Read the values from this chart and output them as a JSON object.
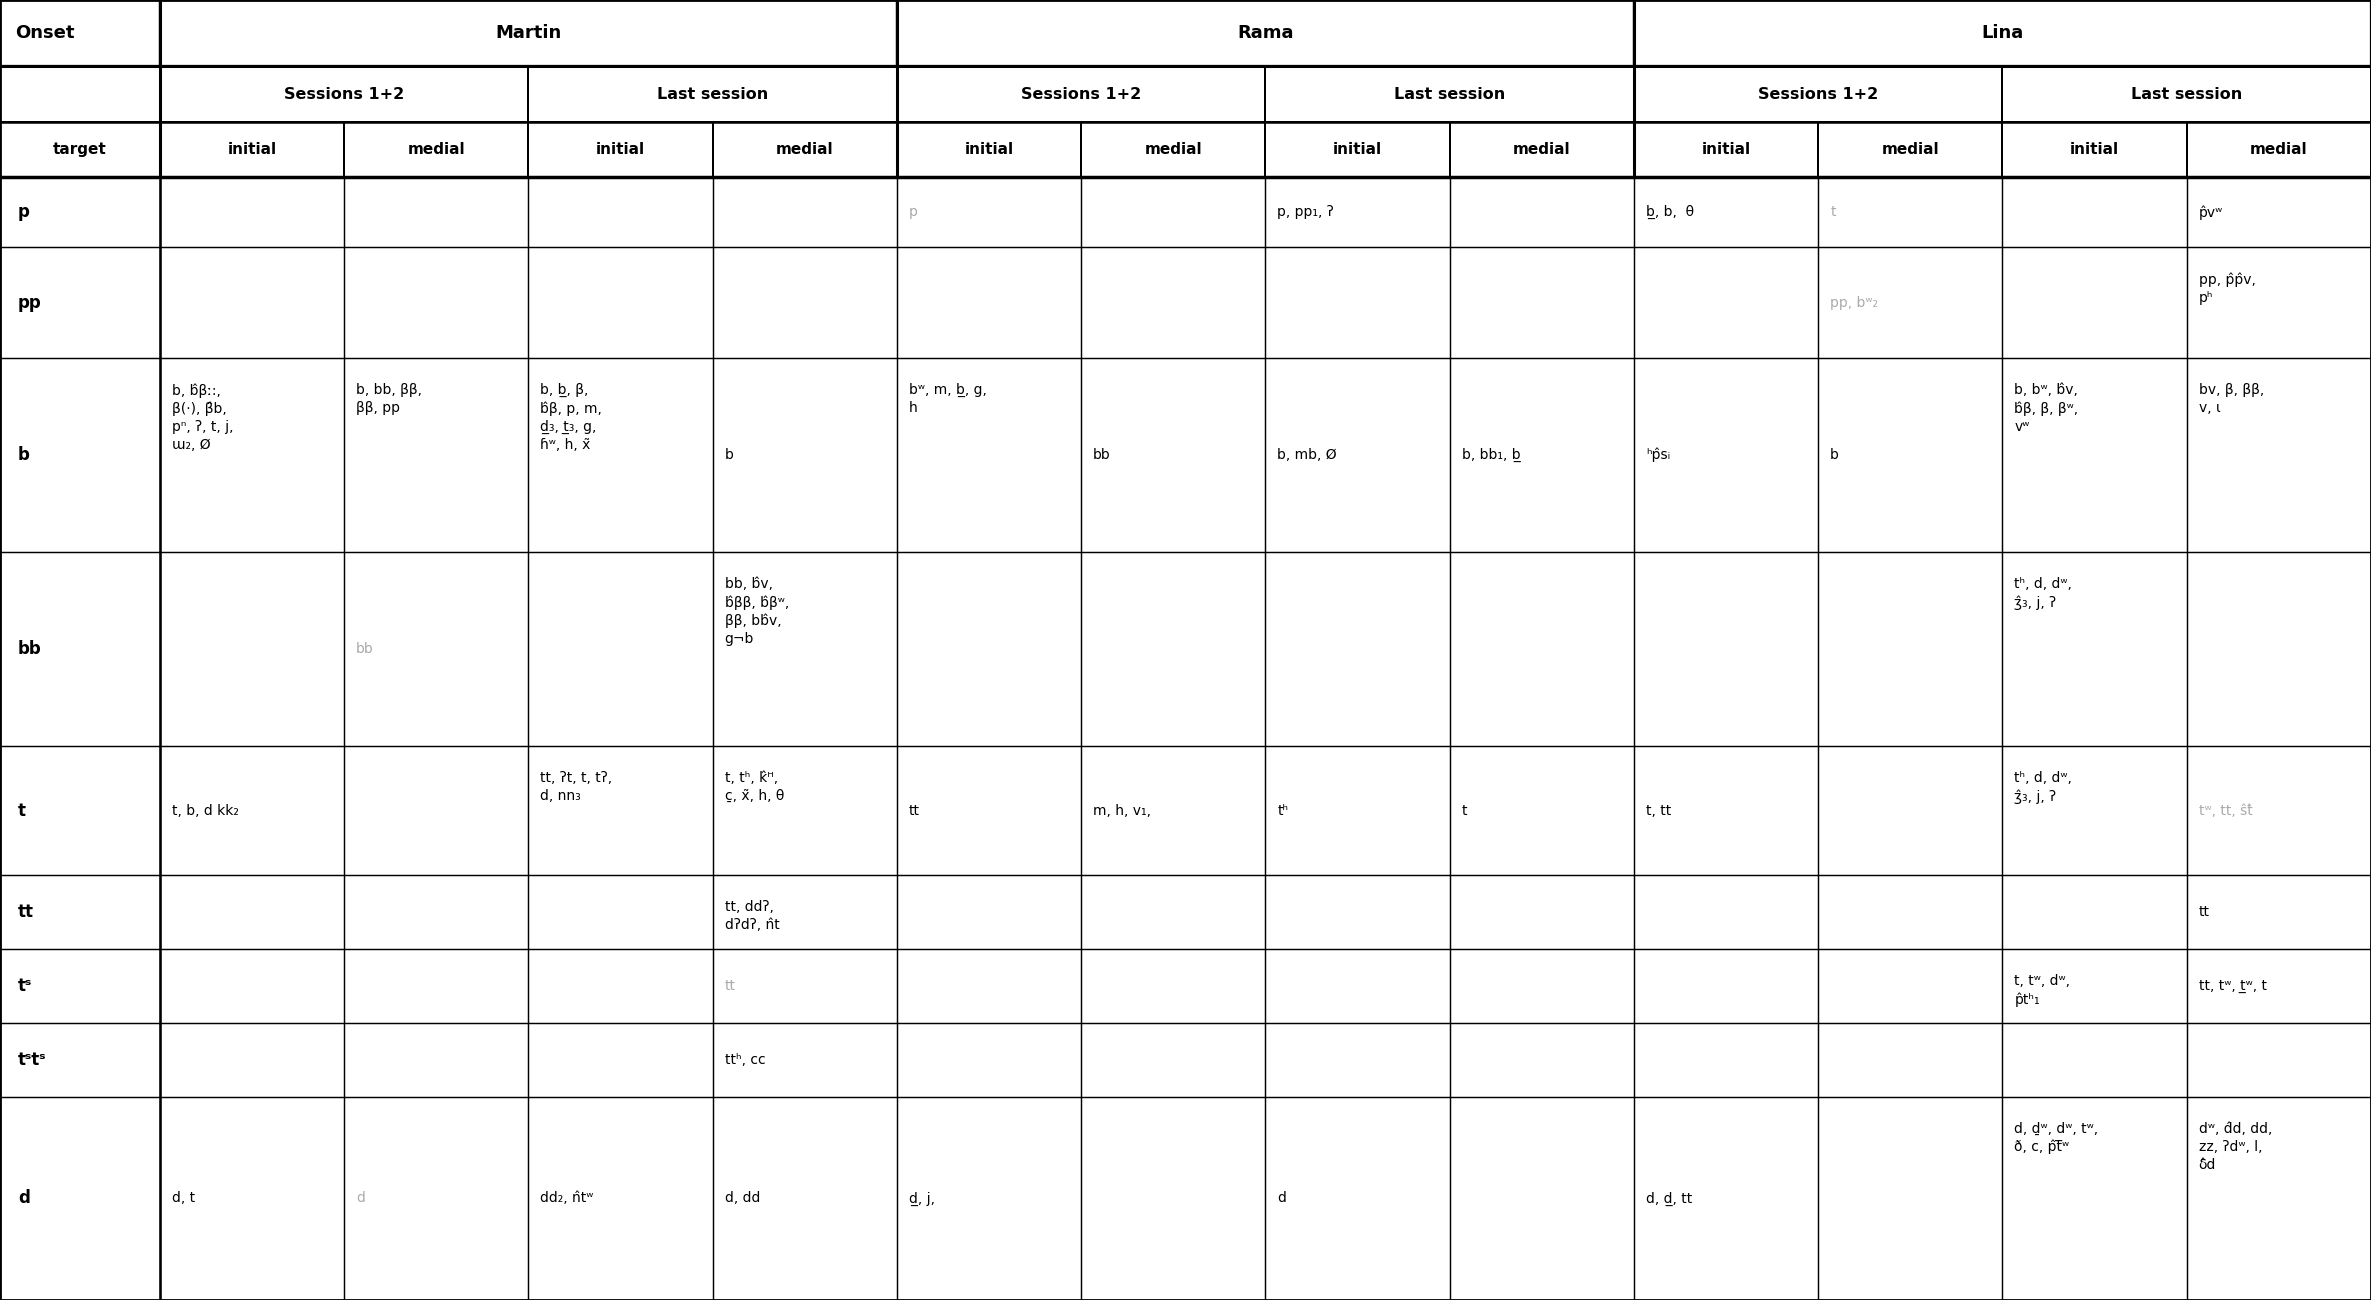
{
  "bg_color": "#ffffff",
  "col_widths_raw": [
    1.71,
    1.97,
    1.97,
    1.97,
    1.97,
    1.97,
    1.97,
    1.97,
    1.97,
    1.97,
    1.97,
    1.97,
    1.97
  ],
  "row_heights_raw": [
    0.72,
    0.6,
    0.6,
    0.76,
    1.2,
    2.1,
    2.1,
    1.4,
    0.8,
    0.8,
    0.8,
    2.2
  ],
  "header1_cells": [
    {
      "col": 0,
      "span": 1,
      "text": "Onset"
    },
    {
      "col": 1,
      "span": 4,
      "text": "Martin"
    },
    {
      "col": 5,
      "span": 4,
      "text": "Rama"
    },
    {
      "col": 9,
      "span": 4,
      "text": "Lina"
    }
  ],
  "header2_cells": [
    {
      "col": 0,
      "span": 1,
      "text": ""
    },
    {
      "col": 1,
      "span": 2,
      "text": "Sessions 1+2"
    },
    {
      "col": 3,
      "span": 2,
      "text": "Last session"
    },
    {
      "col": 5,
      "span": 2,
      "text": "Sessions 1+2"
    },
    {
      "col": 7,
      "span": 2,
      "text": "Last session"
    },
    {
      "col": 9,
      "span": 2,
      "text": "Sessions 1+2"
    },
    {
      "col": 11,
      "span": 2,
      "text": "Last session"
    }
  ],
  "header3": [
    "target",
    "initial",
    "medial",
    "initial",
    "medial",
    "initial",
    "medial",
    "initial",
    "medial",
    "initial",
    "medial",
    "initial",
    "medial"
  ],
  "gray": "#aaaaaa",
  "black": "#000000",
  "rows": [
    {
      "row_idx": 3,
      "cells": {
        "0": {
          "text": "p",
          "color": "black",
          "bold": true
        },
        "1": {
          "text": "",
          "color": "black",
          "bold": false
        },
        "2": {
          "text": "",
          "color": "black",
          "bold": false
        },
        "3": {
          "text": "",
          "color": "black",
          "bold": false
        },
        "4": {
          "text": "",
          "color": "black",
          "bold": false
        },
        "5": {
          "text": "p",
          "color": "gray",
          "bold": false
        },
        "6": {
          "text": "",
          "color": "black",
          "bold": false
        },
        "7": {
          "text": "p, pp₁, ʔ",
          "color": "black",
          "bold": false
        },
        "8": {
          "text": "",
          "color": "black",
          "bold": false
        },
        "9": {
          "text": "b̲, b,  θ",
          "color": "black",
          "bold": false
        },
        "10": {
          "text": "t",
          "color": "gray",
          "bold": false
        },
        "11": {
          "text": "",
          "color": "black",
          "bold": false
        },
        "12": {
          "text": "p̂vʷ",
          "color": "black",
          "bold": false
        }
      }
    },
    {
      "row_idx": 4,
      "cells": {
        "0": {
          "text": "pp",
          "color": "black",
          "bold": true
        },
        "1": {
          "text": "",
          "color": "black",
          "bold": false
        },
        "2": {
          "text": "",
          "color": "black",
          "bold": false
        },
        "3": {
          "text": "",
          "color": "black",
          "bold": false
        },
        "4": {
          "text": "",
          "color": "black",
          "bold": false
        },
        "5": {
          "text": "",
          "color": "black",
          "bold": false
        },
        "6": {
          "text": "",
          "color": "black",
          "bold": false
        },
        "7": {
          "text": "",
          "color": "black",
          "bold": false
        },
        "8": {
          "text": "",
          "color": "black",
          "bold": false
        },
        "9": {
          "text": "",
          "color": "black",
          "bold": false
        },
        "10": {
          "text": "pp, bʷ₂",
          "color": "gray",
          "bold": false
        },
        "11": {
          "text": "",
          "color": "black",
          "bold": false
        },
        "12": {
          "text": "pp, p̂p̂v,\npʰ",
          "color": "black",
          "bold": false
        }
      }
    },
    {
      "row_idx": 5,
      "cells": {
        "0": {
          "text": "b",
          "color": "black",
          "bold": true
        },
        "1": {
          "text": "b, b̂βː:,\nβ(·), β̂b,\npⁿ, ʔ, t, j,\nɯ₂, Ø",
          "color": "black",
          "bold": false
        },
        "2": {
          "text": "b, bb, ββ,\nββ, pp",
          "color": "black",
          "bold": false
        },
        "3": {
          "text": "b, b̲, β,\nb̂β, p, m,\nd̲₃, t̲₃, g,\nɦʷ, h, x̃",
          "color": "black",
          "bold": false
        },
        "4": {
          "text": "b",
          "color": "black",
          "bold": false
        },
        "5": {
          "text": "bʷ, m, b̲, g,\nh",
          "color": "black",
          "bold": false
        },
        "6": {
          "text": "bb",
          "color": "black",
          "bold": false
        },
        "7": {
          "text": "b, mb, Ø",
          "color": "black",
          "bold": false
        },
        "8": {
          "text": "b, bb₁, b̲",
          "color": "black",
          "bold": false
        },
        "9": {
          "text": "ʰp̂sᵢ",
          "color": "black",
          "bold": false
        },
        "10": {
          "text": "b",
          "color": "black",
          "bold": false
        },
        "11": {
          "text": "b, bʷ, b̂v,\nb̂β, β, βʷ,\nvʷ",
          "color": "black",
          "bold": false
        },
        "12": {
          "text": "bv, β, ββ,\nv, ɩ",
          "color": "black",
          "bold": false
        }
      }
    },
    {
      "row_idx": 6,
      "cells": {
        "0": {
          "text": "bb",
          "color": "black",
          "bold": true
        },
        "1": {
          "text": "",
          "color": "black",
          "bold": false
        },
        "2": {
          "text": "bb",
          "color": "gray",
          "bold": false
        },
        "3": {
          "text": "",
          "color": "black",
          "bold": false
        },
        "4": {
          "text": "bb, b̂v,\nb̂ββ, b̂βʷ,\nββ, bb̂v,\ng¬b",
          "color": "black",
          "bold": false
        },
        "5": {
          "text": "",
          "color": "black",
          "bold": false
        },
        "6": {
          "text": "",
          "color": "black",
          "bold": false
        },
        "7": {
          "text": "",
          "color": "black",
          "bold": false
        },
        "8": {
          "text": "",
          "color": "black",
          "bold": false
        },
        "9": {
          "text": "",
          "color": "black",
          "bold": false
        },
        "10": {
          "text": "",
          "color": "black",
          "bold": false
        },
        "11": {
          "text": "tʰ, d, dʷ,\nʒ̂₃, j, ʔ",
          "color": "black",
          "bold": false
        },
        "12": {
          "text": "",
          "color": "black",
          "bold": false
        }
      }
    },
    {
      "row_idx": 7,
      "cells": {
        "0": {
          "text": "t",
          "color": "black",
          "bold": true
        },
        "1": {
          "text": "t, b, d kk₂",
          "color": "black",
          "bold": false
        },
        "2": {
          "text": "",
          "color": "black",
          "bold": false
        },
        "3": {
          "text": "tt, ʔt, t, tʔ,\nd, nn₃",
          "color": "black",
          "bold": false
        },
        "4": {
          "text": "t, tʰ, k̂ᴴ,\nc̱, x̃, h, θ",
          "color": "black",
          "bold": false
        },
        "5": {
          "text": "tt",
          "color": "black",
          "bold": false
        },
        "6": {
          "text": "m, h, v₁,",
          "color": "black",
          "bold": false
        },
        "7": {
          "text": "tʰ",
          "color": "black",
          "bold": false
        },
        "8": {
          "text": "t",
          "color": "black",
          "bold": false
        },
        "9": {
          "text": "t, tt",
          "color": "black",
          "bold": false
        },
        "10": {
          "text": "",
          "color": "black",
          "bold": false
        },
        "11": {
          "text": "tʰ, d, dʷ,\nʒ̂₃, j, ʔ",
          "color": "black",
          "bold": false
        },
        "12": {
          "text": "tʷ, tt, ŝt̂",
          "color": "gray",
          "bold": false
        }
      }
    },
    {
      "row_idx": 8,
      "cells": {
        "0": {
          "text": "tt",
          "color": "black",
          "bold": true
        },
        "1": {
          "text": "",
          "color": "black",
          "bold": false
        },
        "2": {
          "text": "",
          "color": "black",
          "bold": false
        },
        "3": {
          "text": "",
          "color": "black",
          "bold": false
        },
        "4": {
          "text": "tt, ddʔ,\ndʔdʔ, n̂t",
          "color": "black",
          "bold": false
        },
        "5": {
          "text": "",
          "color": "black",
          "bold": false
        },
        "6": {
          "text": "",
          "color": "black",
          "bold": false
        },
        "7": {
          "text": "",
          "color": "black",
          "bold": false
        },
        "8": {
          "text": "",
          "color": "black",
          "bold": false
        },
        "9": {
          "text": "",
          "color": "black",
          "bold": false
        },
        "10": {
          "text": "",
          "color": "black",
          "bold": false
        },
        "11": {
          "text": "",
          "color": "black",
          "bold": false
        },
        "12": {
          "text": "tt",
          "color": "black",
          "bold": false
        }
      }
    },
    {
      "row_idx": 9,
      "cells": {
        "0": {
          "text": "tˢ",
          "color": "black",
          "bold": true
        },
        "1": {
          "text": "",
          "color": "black",
          "bold": false
        },
        "2": {
          "text": "",
          "color": "black",
          "bold": false
        },
        "3": {
          "text": "",
          "color": "black",
          "bold": false
        },
        "4": {
          "text": "tt",
          "color": "gray",
          "bold": false
        },
        "5": {
          "text": "",
          "color": "black",
          "bold": false
        },
        "6": {
          "text": "",
          "color": "black",
          "bold": false
        },
        "7": {
          "text": "",
          "color": "black",
          "bold": false
        },
        "8": {
          "text": "",
          "color": "black",
          "bold": false
        },
        "9": {
          "text": "",
          "color": "black",
          "bold": false
        },
        "10": {
          "text": "",
          "color": "black",
          "bold": false
        },
        "11": {
          "text": "t, tʷ, dʷ,\np̂tʰ₁",
          "color": "black",
          "bold": false
        },
        "12": {
          "text": "tt, tʷ, t̲ʷ, t",
          "color": "black",
          "bold": false
        }
      }
    },
    {
      "row_idx": 10,
      "cells": {
        "0": {
          "text": "tˢtˢ",
          "color": "black",
          "bold": true
        },
        "1": {
          "text": "",
          "color": "black",
          "bold": false
        },
        "2": {
          "text": "",
          "color": "black",
          "bold": false
        },
        "3": {
          "text": "",
          "color": "black",
          "bold": false
        },
        "4": {
          "text": "ttʰ, cc",
          "color": "black",
          "bold": false
        },
        "5": {
          "text": "",
          "color": "black",
          "bold": false
        },
        "6": {
          "text": "",
          "color": "black",
          "bold": false
        },
        "7": {
          "text": "",
          "color": "black",
          "bold": false
        },
        "8": {
          "text": "",
          "color": "black",
          "bold": false
        },
        "9": {
          "text": "",
          "color": "black",
          "bold": false
        },
        "10": {
          "text": "",
          "color": "black",
          "bold": false
        },
        "11": {
          "text": "",
          "color": "black",
          "bold": false
        },
        "12": {
          "text": "",
          "color": "black",
          "bold": false
        }
      }
    },
    {
      "row_idx": 11,
      "cells": {
        "0": {
          "text": "d",
          "color": "black",
          "bold": true
        },
        "1": {
          "text": "d, t",
          "color": "black",
          "bold": false
        },
        "2": {
          "text": "d",
          "color": "gray",
          "bold": false
        },
        "3": {
          "text": "dd₂, n̂tʷ",
          "color": "black",
          "bold": false
        },
        "4": {
          "text": "d, dd",
          "color": "black",
          "bold": false
        },
        "5": {
          "text": "d̲, j,",
          "color": "black",
          "bold": false
        },
        "6": {
          "text": "",
          "color": "black",
          "bold": false
        },
        "7": {
          "text": "d",
          "color": "black",
          "bold": false
        },
        "8": {
          "text": "",
          "color": "black",
          "bold": false
        },
        "9": {
          "text": "d, d̲, tt",
          "color": "black",
          "bold": false
        },
        "10": {
          "text": "",
          "color": "black",
          "bold": false
        },
        "11": {
          "text": "d, ḏʷ, dʷ, tʷ,\nð, c, p̂t̅ʷ",
          "color": "black",
          "bold": false
        },
        "12": {
          "text": "dʷ, d̂d, dd,\nzz, ʔdʷ, l,\nδ̂d",
          "color": "black",
          "bold": false
        }
      }
    }
  ]
}
